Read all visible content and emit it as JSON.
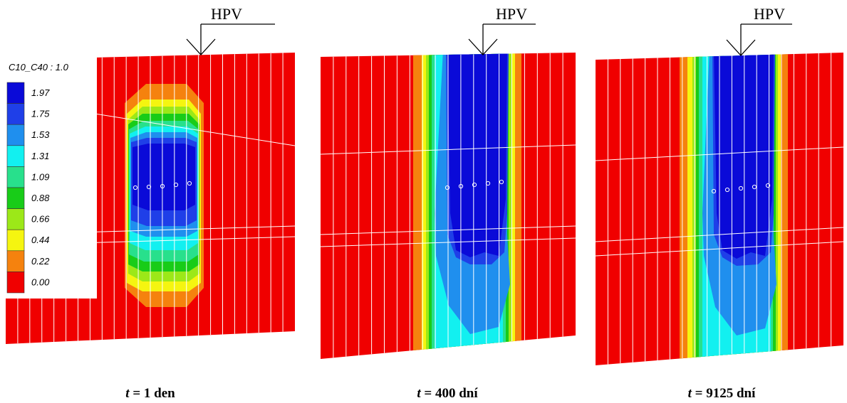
{
  "marker_label": "HPV",
  "legend": {
    "title": "C10_C40 : 1.0",
    "levels": [
      {
        "value": "1.97",
        "color": "#0a0ad8"
      },
      {
        "value": "1.75",
        "color": "#1f3fe8"
      },
      {
        "value": "1.53",
        "color": "#1f8fee"
      },
      {
        "value": "1.31",
        "color": "#12f0f0"
      },
      {
        "value": "1.09",
        "color": "#28e08c"
      },
      {
        "value": "0.88",
        "color": "#18cc18"
      },
      {
        "value": "0.66",
        "color": "#9ce818"
      },
      {
        "value": "0.44",
        "color": "#f5f510"
      },
      {
        "value": "0.22",
        "color": "#f5820e"
      },
      {
        "value": "0.00",
        "color": "#f00000"
      }
    ]
  },
  "panels": [
    {
      "caption_var": "t",
      "caption_rest": " = 1 den"
    },
    {
      "caption_var": "t",
      "caption_rest": " = 400 dní"
    },
    {
      "caption_var": "t",
      "caption_rest": " = 9125 dní"
    }
  ]
}
